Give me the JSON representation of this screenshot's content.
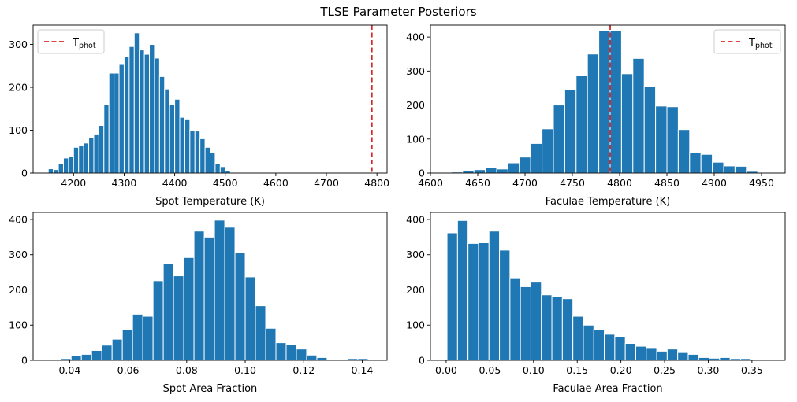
{
  "suptitle": "TLSE Parameter Posteriors",
  "chart_data": [
    {
      "type": "bar",
      "subtype": "histogram",
      "xlabel": "Spot Temperature (K)",
      "ylabel": "",
      "xlim": [
        4120,
        4820
      ],
      "ylim": [
        0,
        345
      ],
      "xticks": [
        4200,
        4300,
        4400,
        4500,
        4600,
        4700,
        4800
      ],
      "yticks": [
        0,
        100,
        200,
        300
      ],
      "bar_color": "#1f77b4",
      "bins": [
        [
          4150,
          4160,
          10
        ],
        [
          4160,
          4170,
          8
        ],
        [
          4170,
          4180,
          22
        ],
        [
          4180,
          4190,
          35
        ],
        [
          4190,
          4200,
          39
        ],
        [
          4200,
          4210,
          60
        ],
        [
          4210,
          4220,
          65
        ],
        [
          4220,
          4230,
          70
        ],
        [
          4230,
          4240,
          82
        ],
        [
          4240,
          4250,
          91
        ],
        [
          4250,
          4260,
          111
        ],
        [
          4260,
          4270,
          160
        ],
        [
          4270,
          4280,
          233
        ],
        [
          4280,
          4290,
          233
        ],
        [
          4290,
          4300,
          255
        ],
        [
          4300,
          4310,
          271
        ],
        [
          4310,
          4320,
          295
        ],
        [
          4320,
          4330,
          327
        ],
        [
          4330,
          4340,
          287
        ],
        [
          4340,
          4350,
          277
        ],
        [
          4350,
          4360,
          300
        ],
        [
          4360,
          4370,
          268
        ],
        [
          4370,
          4380,
          225
        ],
        [
          4380,
          4390,
          196
        ],
        [
          4390,
          4400,
          160
        ],
        [
          4400,
          4410,
          172
        ],
        [
          4410,
          4420,
          130
        ],
        [
          4420,
          4430,
          126
        ],
        [
          4430,
          4440,
          100
        ],
        [
          4440,
          4450,
          98
        ],
        [
          4450,
          4460,
          80
        ],
        [
          4460,
          4470,
          60
        ],
        [
          4470,
          4480,
          48
        ],
        [
          4480,
          4490,
          22
        ],
        [
          4490,
          4500,
          15
        ],
        [
          4500,
          4510,
          6
        ]
      ],
      "vline": {
        "x": 4790,
        "color": "#d62728",
        "label": "T",
        "label_sub": "phot"
      },
      "legend_position": "upper-left"
    },
    {
      "type": "bar",
      "subtype": "histogram",
      "xlabel": "Faculae Temperature (K)",
      "ylabel": "",
      "xlim": [
        4600,
        4975
      ],
      "ylim": [
        0,
        435
      ],
      "xticks": [
        4600,
        4650,
        4700,
        4750,
        4800,
        4850,
        4900,
        4950
      ],
      "yticks": [
        0,
        100,
        200,
        300,
        400
      ],
      "bar_color": "#1f77b4",
      "bins": [
        [
          4610,
          4622,
          1
        ],
        [
          4622,
          4634,
          3
        ],
        [
          4634,
          4646,
          6
        ],
        [
          4646,
          4658,
          10
        ],
        [
          4658,
          4670,
          16
        ],
        [
          4670,
          4682,
          12
        ],
        [
          4682,
          4694,
          30
        ],
        [
          4694,
          4706,
          47
        ],
        [
          4706,
          4718,
          87
        ],
        [
          4718,
          4730,
          130
        ],
        [
          4730,
          4742,
          200
        ],
        [
          4742,
          4754,
          245
        ],
        [
          4754,
          4766,
          288
        ],
        [
          4766,
          4778,
          350
        ],
        [
          4778,
          4790,
          418
        ],
        [
          4790,
          4802,
          418
        ],
        [
          4802,
          4814,
          292
        ],
        [
          4814,
          4826,
          337
        ],
        [
          4826,
          4838,
          255
        ],
        [
          4838,
          4850,
          197
        ],
        [
          4850,
          4862,
          195
        ],
        [
          4862,
          4874,
          128
        ],
        [
          4874,
          4886,
          60
        ],
        [
          4886,
          4898,
          55
        ],
        [
          4898,
          4910,
          32
        ],
        [
          4910,
          4922,
          21
        ],
        [
          4922,
          4934,
          20
        ],
        [
          4934,
          4946,
          5
        ],
        [
          4946,
          4958,
          2
        ]
      ],
      "vline": {
        "x": 4790,
        "color": "#d62728",
        "label": "T",
        "label_sub": "phot"
      },
      "legend_position": "upper-right"
    },
    {
      "type": "bar",
      "subtype": "histogram",
      "xlabel": "Spot Area Fraction",
      "ylabel": "",
      "xlim": [
        0.0275,
        0.1485
      ],
      "ylim": [
        0,
        420
      ],
      "xticks": [
        0.04,
        0.06,
        0.08,
        0.1,
        0.12,
        0.14
      ],
      "xtick_labels": [
        "0.04",
        "0.06",
        "0.08",
        "0.10",
        "0.12",
        "0.14"
      ],
      "yticks": [
        0,
        100,
        200,
        300,
        400
      ],
      "bar_color": "#1f77b4",
      "bins": [
        [
          0.0335,
          0.037,
          2
        ],
        [
          0.037,
          0.0405,
          5
        ],
        [
          0.0405,
          0.044,
          13
        ],
        [
          0.044,
          0.0475,
          17
        ],
        [
          0.0475,
          0.051,
          28
        ],
        [
          0.051,
          0.0545,
          43
        ],
        [
          0.0545,
          0.058,
          60
        ],
        [
          0.058,
          0.0615,
          87
        ],
        [
          0.0615,
          0.065,
          131
        ],
        [
          0.065,
          0.0685,
          125
        ],
        [
          0.0685,
          0.072,
          226
        ],
        [
          0.072,
          0.0755,
          275
        ],
        [
          0.0755,
          0.079,
          240
        ],
        [
          0.079,
          0.0825,
          292
        ],
        [
          0.0825,
          0.086,
          367
        ],
        [
          0.086,
          0.0895,
          350
        ],
        [
          0.0895,
          0.093,
          398
        ],
        [
          0.093,
          0.0965,
          378
        ],
        [
          0.0965,
          0.1,
          305
        ],
        [
          0.1,
          0.1035,
          237
        ],
        [
          0.1035,
          0.107,
          155
        ],
        [
          0.107,
          0.1105,
          91
        ],
        [
          0.1105,
          0.114,
          50
        ],
        [
          0.114,
          0.1175,
          45
        ],
        [
          0.1175,
          0.121,
          32
        ],
        [
          0.121,
          0.1245,
          15
        ],
        [
          0.1245,
          0.128,
          8
        ],
        [
          0.128,
          0.1315,
          3
        ],
        [
          0.1315,
          0.135,
          3
        ],
        [
          0.135,
          0.1385,
          5
        ],
        [
          0.1385,
          0.142,
          5
        ]
      ]
    },
    {
      "type": "bar",
      "subtype": "histogram",
      "xlabel": "Faculae Area Fraction",
      "ylabel": "",
      "xlim": [
        -0.018,
        0.388
      ],
      "ylim": [
        0,
        420
      ],
      "xticks": [
        0.0,
        0.05,
        0.1,
        0.15,
        0.2,
        0.25,
        0.3,
        0.35
      ],
      "xtick_labels": [
        "0.00",
        "0.05",
        "0.10",
        "0.15",
        "0.20",
        "0.25",
        "0.30",
        "0.35"
      ],
      "yticks": [
        0,
        100,
        200,
        300,
        400
      ],
      "bar_color": "#1f77b4",
      "bins": [
        [
          0.001,
          0.013,
          362
        ],
        [
          0.013,
          0.025,
          397
        ],
        [
          0.025,
          0.037,
          332
        ],
        [
          0.037,
          0.049,
          334
        ],
        [
          0.049,
          0.061,
          367
        ],
        [
          0.061,
          0.073,
          313
        ],
        [
          0.073,
          0.085,
          232
        ],
        [
          0.085,
          0.097,
          209
        ],
        [
          0.097,
          0.109,
          222
        ],
        [
          0.109,
          0.121,
          186
        ],
        [
          0.121,
          0.133,
          180
        ],
        [
          0.133,
          0.145,
          175
        ],
        [
          0.145,
          0.157,
          125
        ],
        [
          0.157,
          0.169,
          100
        ],
        [
          0.169,
          0.181,
          87
        ],
        [
          0.181,
          0.193,
          74
        ],
        [
          0.193,
          0.205,
          68
        ],
        [
          0.205,
          0.217,
          48
        ],
        [
          0.217,
          0.229,
          40
        ],
        [
          0.229,
          0.241,
          36
        ],
        [
          0.241,
          0.253,
          26
        ],
        [
          0.253,
          0.265,
          32
        ],
        [
          0.265,
          0.277,
          22
        ],
        [
          0.277,
          0.289,
          17
        ],
        [
          0.289,
          0.301,
          8
        ],
        [
          0.301,
          0.313,
          6
        ],
        [
          0.313,
          0.325,
          8
        ],
        [
          0.325,
          0.337,
          5
        ],
        [
          0.337,
          0.349,
          5
        ],
        [
          0.349,
          0.361,
          3
        ],
        [
          0.361,
          0.373,
          1
        ]
      ]
    }
  ]
}
